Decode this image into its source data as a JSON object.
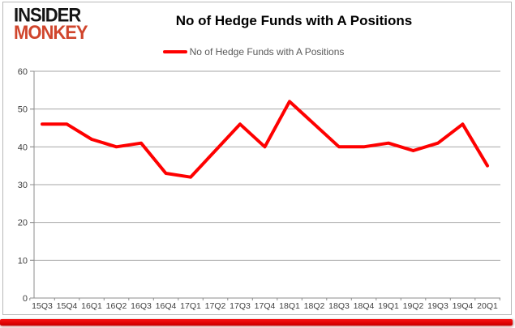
{
  "logo": {
    "line1": "INSIDER",
    "line2": "MONKEY"
  },
  "header": {
    "title": "No of Hedge Funds with A Positions"
  },
  "legend": {
    "label": "No of Hedge Funds with A Positions"
  },
  "colors": {
    "series_red": "#fe0000",
    "logo_red": "#d0452c",
    "gridline": "#a6a6a6",
    "axis": "#8c8c8c",
    "tick_text": "#404040",
    "bottom_bar_red": "#e20404"
  },
  "chart_data": {
    "type": "line",
    "title": "No of Hedge Funds with A Positions",
    "categories": [
      "15Q3",
      "15Q4",
      "16Q1",
      "16Q2",
      "16Q3",
      "16Q4",
      "17Q1",
      "17Q2",
      "17Q3",
      "17Q4",
      "18Q1",
      "18Q2",
      "18Q3",
      "18Q4",
      "19Q1",
      "19Q2",
      "19Q3",
      "19Q4",
      "20Q1"
    ],
    "series": [
      {
        "name": "No of Hedge Funds with A Positions",
        "color": "#fe0000",
        "values": [
          46,
          46,
          42,
          40,
          41,
          33,
          32,
          39,
          46,
          40,
          52,
          46,
          40,
          40,
          41,
          39,
          41,
          46,
          35
        ]
      }
    ],
    "xlabel": "",
    "ylabel": "",
    "ylim": [
      0,
      60
    ],
    "yticks": [
      0,
      10,
      20,
      30,
      40,
      50,
      60
    ],
    "grid": true,
    "legend_position": "top-center"
  }
}
